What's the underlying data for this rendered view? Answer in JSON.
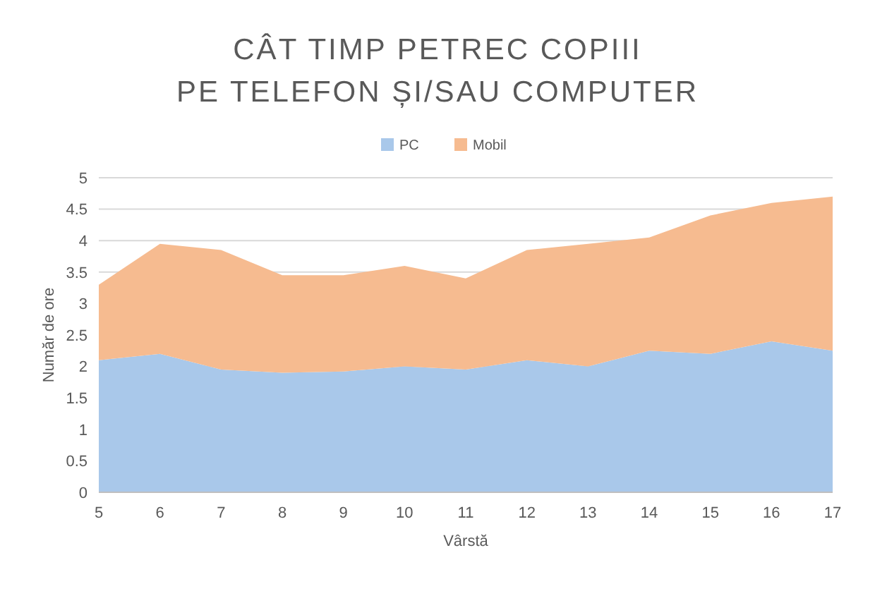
{
  "chart_data": {
    "type": "area",
    "title": "CÂT TIMP PETREC COPIII PE TELEFON ȘI/SAU COMPUTER",
    "xlabel": "Vârstă",
    "ylabel": "Număr de ore",
    "stacked": true,
    "x": [
      5,
      6,
      7,
      8,
      9,
      10,
      11,
      12,
      13,
      14,
      15,
      16,
      17
    ],
    "series": [
      {
        "name": "PC",
        "color": "#a9c8ea",
        "values": [
          2.1,
          2.2,
          1.95,
          1.9,
          1.92,
          2.0,
          1.95,
          2.1,
          2.0,
          2.25,
          2.2,
          2.4,
          2.25
        ]
      },
      {
        "name": "Mobil",
        "color": "#f6bb90",
        "values": [
          1.2,
          1.75,
          1.9,
          1.55,
          1.53,
          1.6,
          1.45,
          1.75,
          1.95,
          1.8,
          2.2,
          2.2,
          2.45
        ]
      }
    ],
    "xlim": [
      5,
      17
    ],
    "xticks": [
      5,
      6,
      7,
      8,
      9,
      10,
      11,
      12,
      13,
      14,
      15,
      16,
      17
    ],
    "ylim": [
      0,
      5
    ],
    "yticks": [
      0,
      0.5,
      1,
      1.5,
      2,
      2.5,
      3,
      3.5,
      4,
      4.5,
      5
    ],
    "grid": "y",
    "legend": "top"
  }
}
